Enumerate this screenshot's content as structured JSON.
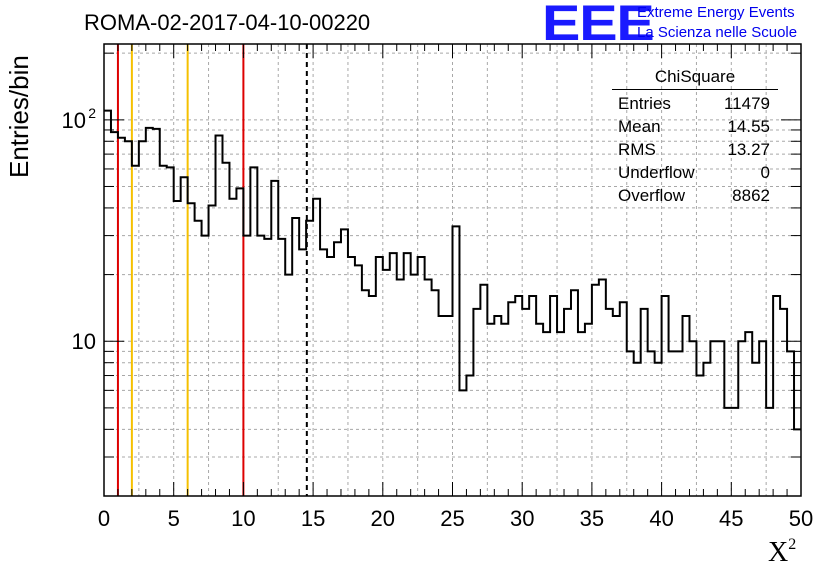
{
  "header": {
    "title": "ROMA-02-2017-04-10-00220",
    "logo_text": "EEE",
    "brand_line1": "Extreme Energy Events",
    "brand_line2": "La Scienza nelle Scuole"
  },
  "colors": {
    "logo": "#1a1aff",
    "red_line": "#dd0000",
    "yellow_line": "#f5c000",
    "hist": "#000000"
  },
  "stats": {
    "name": "ChiSquare",
    "rows": [
      {
        "label": "Entries",
        "value": "11479"
      },
      {
        "label": "Mean",
        "value": "14.55"
      },
      {
        "label": "RMS",
        "value": "13.27"
      },
      {
        "label": "Underflow",
        "value": "0"
      },
      {
        "label": "Overflow",
        "value": "8862"
      }
    ]
  },
  "chart_data": {
    "type": "histogram",
    "title": "ROMA-02-2017-04-10-00220",
    "xlabel": "X",
    "xlabel_sup": "2",
    "ylabel": "Entries/bin",
    "yscale": "log",
    "xlim": [
      0,
      50
    ],
    "ylim": [
      2,
      220
    ],
    "bin_width": 0.5,
    "grid": true,
    "x_ticks": [
      "0",
      "5",
      "10",
      "15",
      "20",
      "25",
      "30",
      "35",
      "40",
      "45",
      "50"
    ],
    "y_ticks": [
      {
        "value": 10,
        "label": "10"
      },
      {
        "value": 100,
        "label": "10",
        "sup": "2"
      }
    ],
    "values": [
      110,
      88,
      83,
      80,
      62,
      80,
      92,
      91,
      62,
      61,
      43,
      55,
      42,
      35,
      30,
      41,
      85,
      64,
      44,
      49,
      30,
      61,
      30,
      29,
      53,
      29,
      20,
      36,
      26,
      35,
      44,
      26,
      24,
      28,
      32,
      24,
      22,
      17,
      16,
      24,
      21,
      25,
      19,
      25,
      20,
      24,
      19,
      17,
      13,
      13,
      33,
      6,
      7,
      14,
      18,
      12,
      13,
      12,
      15,
      16,
      14,
      16,
      12,
      11,
      16,
      11,
      14,
      17,
      11,
      12,
      18,
      19,
      14,
      13,
      15,
      9,
      8,
      14,
      9,
      8,
      16,
      9,
      9,
      13,
      10,
      7,
      8,
      10,
      10,
      5,
      5,
      10,
      11,
      8,
      10,
      5,
      16,
      14,
      9,
      4
    ],
    "vertical_lines": [
      {
        "x": 1,
        "color": "red"
      },
      {
        "x": 2,
        "color": "yellow"
      },
      {
        "x": 6,
        "color": "yellow"
      },
      {
        "x": 10,
        "color": "red"
      },
      {
        "x": 14.55,
        "color": "black",
        "style": "dashed"
      }
    ]
  }
}
